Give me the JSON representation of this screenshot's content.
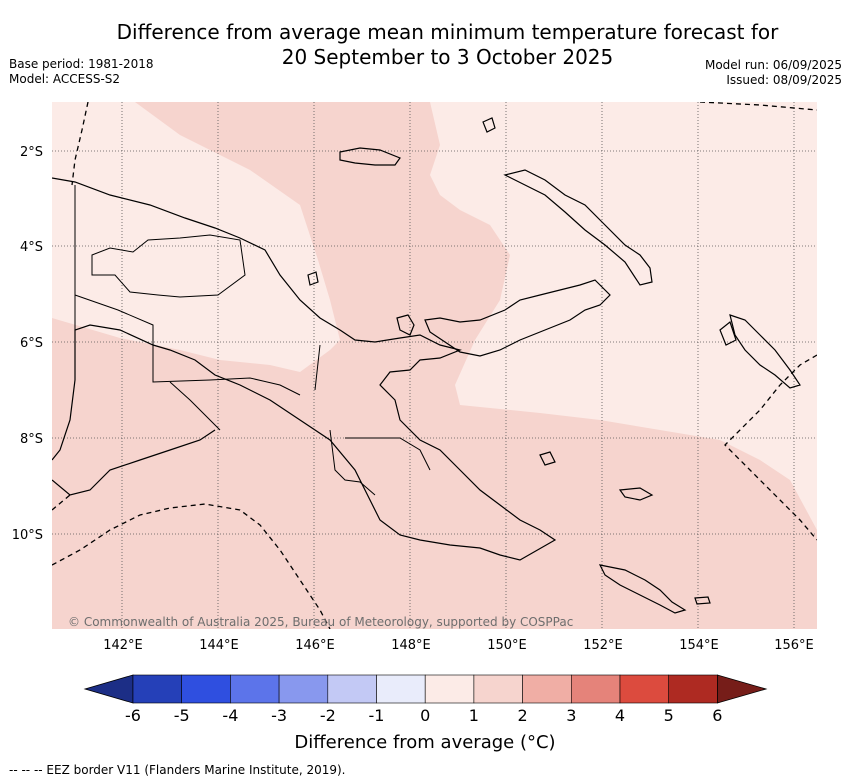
{
  "header": {
    "title_line1": "Difference from average mean minimum temperature forecast for",
    "title_line2": "20 September to 3 October 2025",
    "base_period": "Base period: 1981-2018",
    "model": "Model: ACCESS-S2",
    "model_run": "Model run: 06/09/2025",
    "issued": "Issued: 08/09/2025"
  },
  "map": {
    "lat_labels": [
      "2°S",
      "4°S",
      "6°S",
      "8°S",
      "10°S"
    ],
    "lon_labels": [
      "142°E",
      "144°E",
      "146°E",
      "148°E",
      "150°E",
      "152°E",
      "154°E",
      "156°E"
    ],
    "copyright": "© Commonwealth of Australia 2025, Bureau of Meteorology, supported by COSPPac",
    "colors": {
      "anomaly_0_to_1": "#fcebe7",
      "anomaly_1_to_2": "#f6d4ce",
      "land_outline": "#000000",
      "grid": "#555555"
    }
  },
  "colorbar": {
    "ticks": [
      "-6",
      "-5",
      "-4",
      "-3",
      "-2",
      "-1",
      "0",
      "1",
      "2",
      "3",
      "4",
      "5",
      "6"
    ],
    "colors": [
      "#1c2e86",
      "#2540b8",
      "#2f4fe0",
      "#5c74ea",
      "#8898ee",
      "#c3c9f5",
      "#e9ecfb",
      "#fcebe7",
      "#f6d4ce",
      "#f0aea5",
      "#e5837a",
      "#dc4b3e",
      "#ae2a22",
      "#761d19"
    ],
    "title": "Difference from average (°C)"
  },
  "footnote": "--  --  -- EEZ border V11 (Flanders Marine Institute, 2019)."
}
